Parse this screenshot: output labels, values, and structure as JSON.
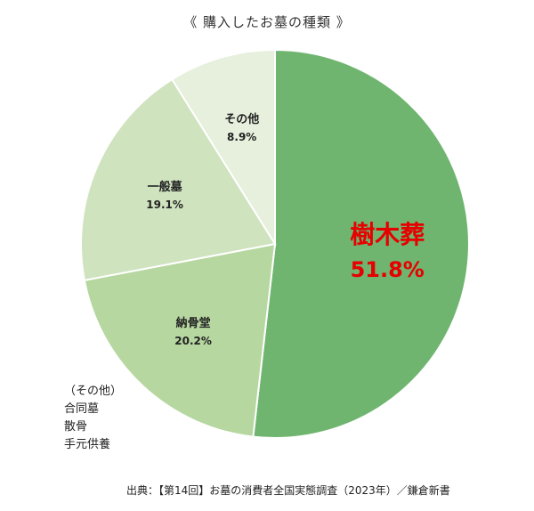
{
  "chart_data": {
    "type": "pie",
    "title": "《 購入したお墓の種類 》",
    "slices": [
      {
        "label": "樹木葬",
        "value": 51.8,
        "value_label": "51.8%",
        "color": "#6fb56f",
        "label_color": "#e60000",
        "emphasis": true
      },
      {
        "label": "納骨堂",
        "value": 20.2,
        "value_label": "20.2%",
        "color": "#b6d7a0",
        "label_color": "#222222",
        "emphasis": false
      },
      {
        "label": "一般墓",
        "value": 19.1,
        "value_label": "19.1%",
        "color": "#cfe3bf",
        "label_color": "#222222",
        "emphasis": false
      },
      {
        "label": "その他",
        "value": 8.9,
        "value_label": "8.9%",
        "color": "#e6f0dc",
        "label_color": "#222222",
        "emphasis": false
      }
    ],
    "start": "12 o'clock",
    "direction": "clockwise"
  },
  "note": {
    "lines": [
      "（その他）",
      "合同墓",
      "散骨",
      "手元供養"
    ]
  },
  "source": "出典：【第14回】お墓の消費者全国実態調査（2023年）／鎌倉新書"
}
